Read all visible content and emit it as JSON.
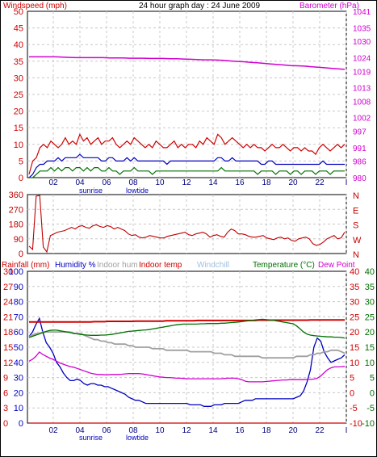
{
  "colors": {
    "wind": "#d00000",
    "gust": "#d00000",
    "avg_wind": "#0000c0",
    "wind_low": "#007000",
    "barometer": "#d000d0",
    "wind_dir": "#c00000",
    "rain": "#d00000",
    "humidity": "#0000c0",
    "indoor_hum": "#a0a0a0",
    "indoor_temp": "#d00000",
    "windchill": "#a0c0e0",
    "temperature": "#007000",
    "dew_point": "#d000d0"
  },
  "header": {
    "left_label": "Windspeed (mph)",
    "title": "24 hour graph day : 24 June 2009",
    "right_label": "Barometer (hPa)"
  },
  "legend": {
    "rainfall": "Rainfall (mm)",
    "humidity": "Humidity %",
    "indoor_hum": "Indoor hum",
    "indoor_temp": "Indoor temp",
    "windchill": "Windchill",
    "temperature": "Temperature (°C)",
    "dew_point": "Dew Point"
  },
  "chart_data": [
    {
      "type": "line",
      "panel": "wind",
      "x_ticks": [
        "02",
        "04",
        "06",
        "08",
        "10",
        "12",
        "14",
        "16",
        "18",
        "20",
        "22",
        "I"
      ],
      "annotations": [
        "sunrise",
        "lowtide"
      ],
      "left_axis": {
        "label": "Windspeed (mph)",
        "range": [
          0,
          50
        ],
        "ticks": [
          0,
          5,
          10,
          15,
          20,
          25,
          30,
          35,
          40,
          45,
          50
        ]
      },
      "right_axis": {
        "label": "Barometer (hPa)",
        "range": [
          980,
          1041
        ],
        "ticks": [
          980,
          986,
          991,
          997,
          1002,
          1008,
          1013,
          1019,
          1024,
          1030,
          1035,
          1041
        ]
      },
      "series": [
        {
          "name": "Gust",
          "axis": "left",
          "values": [
            1,
            5,
            6,
            9,
            10,
            9,
            11,
            10,
            9,
            10,
            12,
            10,
            11,
            10,
            13,
            11,
            12,
            10,
            11,
            12,
            10,
            11,
            11,
            12,
            10,
            9,
            10,
            11,
            10,
            12,
            11,
            10,
            9,
            10,
            9,
            11,
            10,
            9,
            9,
            10,
            11,
            9,
            10,
            9,
            10,
            10,
            9,
            11,
            10,
            12,
            11,
            10,
            13,
            12,
            10,
            11,
            12,
            11,
            10,
            9,
            10,
            9,
            10,
            9,
            9,
            8,
            9,
            10,
            9,
            9,
            10,
            9,
            8,
            9,
            9,
            8,
            9,
            8,
            8,
            7,
            9,
            10,
            9,
            8,
            9,
            10,
            9,
            10
          ]
        },
        {
          "name": "Average",
          "axis": "left",
          "values": [
            0,
            1,
            3,
            4,
            4,
            5,
            5,
            5,
            6,
            5,
            6,
            6,
            6,
            6,
            7,
            6,
            6,
            6,
            6,
            6,
            5,
            5,
            6,
            6,
            5,
            5,
            5,
            6,
            5,
            6,
            5,
            5,
            5,
            5,
            5,
            5,
            5,
            5,
            4,
            5,
            5,
            5,
            5,
            5,
            5,
            5,
            5,
            5,
            5,
            5,
            5,
            5,
            6,
            6,
            5,
            5,
            6,
            5,
            5,
            5,
            5,
            5,
            5,
            5,
            4,
            4,
            5,
            5,
            4,
            4,
            4,
            4,
            4,
            4,
            4,
            4,
            4,
            4,
            4,
            4,
            4,
            5,
            4,
            4,
            4,
            4,
            4,
            4
          ]
        },
        {
          "name": "Low",
          "axis": "left",
          "values": [
            0,
            0,
            1,
            2,
            2,
            2,
            3,
            2,
            3,
            2,
            3,
            3,
            2,
            3,
            3,
            2,
            3,
            2,
            3,
            3,
            2,
            2,
            3,
            2,
            2,
            1,
            2,
            2,
            2,
            3,
            2,
            2,
            2,
            2,
            1,
            2,
            2,
            2,
            2,
            2,
            2,
            2,
            2,
            2,
            2,
            2,
            2,
            2,
            2,
            2,
            2,
            2,
            2,
            3,
            2,
            2,
            2,
            2,
            2,
            2,
            2,
            2,
            2,
            1,
            2,
            2,
            2,
            2,
            1,
            2,
            2,
            2,
            1,
            2,
            2,
            1,
            2,
            2,
            2,
            1,
            2,
            2,
            2,
            1,
            2,
            2,
            2,
            2
          ]
        },
        {
          "name": "Barometer",
          "axis": "right",
          "values": [
            1024.3,
            1024.3,
            1024.3,
            1024.3,
            1024.3,
            1024.2,
            1024.1,
            1024.0,
            1024.0,
            1024.0,
            1024.0,
            1024.0,
            1023.9,
            1023.9,
            1023.9,
            1023.8,
            1023.8,
            1023.8,
            1023.7,
            1023.7,
            1023.7,
            1023.6,
            1023.6,
            1023.5,
            1023.4,
            1023.3,
            1023.2,
            1023.2,
            1023.1,
            1023.0,
            1022.8,
            1022.6,
            1022.5,
            1022.3,
            1022.1,
            1021.9,
            1021.7,
            1021.5,
            1021.3,
            1021.1,
            1021.0,
            1020.9,
            1020.7,
            1020.5,
            1020.3,
            1020.1,
            1019.9,
            1019.7
          ]
        }
      ]
    },
    {
      "type": "line",
      "panel": "wind_direction",
      "axis": {
        "range": [
          0,
          360
        ],
        "ticks": [
          0,
          90,
          180,
          270,
          360
        ]
      },
      "compass_labels": [
        "N",
        "W",
        "S",
        "E",
        "N"
      ],
      "series": [
        {
          "name": "Wind direction",
          "values": [
            45,
            25,
            350,
            355,
            40,
            10,
            110,
            120,
            130,
            135,
            140,
            150,
            160,
            150,
            165,
            170,
            160,
            155,
            170,
            175,
            165,
            160,
            170,
            165,
            150,
            160,
            150,
            140,
            120,
            110,
            115,
            100,
            95,
            100,
            110,
            105,
            100,
            95,
            95,
            105,
            110,
            115,
            120,
            125,
            130,
            115,
            110,
            120,
            125,
            130,
            120,
            100,
            110,
            115,
            105,
            100,
            130,
            150,
            140,
            120,
            120,
            115,
            105,
            100,
            100,
            105,
            110,
            95,
            90,
            85,
            95,
            100,
            90,
            95,
            80,
            75,
            90,
            95,
            100,
            90,
            60,
            50,
            55,
            70,
            90,
            100,
            110,
            90,
            95,
            130
          ]
        }
      ]
    },
    {
      "type": "line",
      "panel": "temperature_humidity",
      "axes": {
        "rainfall": {
          "range": [
            0,
            30
          ],
          "ticks": [
            0,
            3,
            6,
            9,
            12,
            15,
            18,
            21,
            24,
            27,
            30
          ]
        },
        "humidity": {
          "range": [
            0,
            100
          ],
          "ticks": [
            0,
            10,
            20,
            30,
            40,
            50,
            60,
            70,
            80,
            90,
            100
          ]
        },
        "indoor_temp": {
          "range": [
            -10,
            40
          ],
          "ticks": [
            -10,
            -5,
            0,
            5,
            10,
            15,
            20,
            25,
            30,
            35,
            40
          ]
        },
        "temperature": {
          "range": [
            -10,
            40
          ],
          "ticks": [
            -10,
            -5,
            0,
            5,
            10,
            15,
            20,
            25,
            30,
            35,
            40
          ]
        }
      },
      "series": [
        {
          "name": "Humidity %",
          "axis": "humidity",
          "values": [
            57,
            60,
            65,
            69,
            60,
            53,
            50,
            46,
            40,
            37,
            33,
            30,
            28,
            28,
            29,
            28,
            26,
            25,
            26,
            26,
            25,
            25,
            24,
            24,
            23,
            22,
            21,
            20,
            19,
            17,
            16,
            15,
            15,
            14,
            13,
            13,
            13,
            13,
            13,
            13,
            13,
            13,
            13,
            13,
            13,
            13,
            13,
            12,
            12,
            12,
            12,
            11,
            11,
            11,
            12,
            12,
            12,
            13,
            13,
            13,
            13,
            13,
            14,
            15,
            15,
            15,
            16,
            16,
            16,
            16,
            16,
            16,
            16,
            16,
            16,
            16,
            16,
            16,
            17,
            18,
            21,
            27,
            35,
            50,
            56,
            54,
            47,
            43,
            40,
            41,
            42,
            43,
            45
          ]
        },
        {
          "name": "Indoor hum",
          "axis": "humidity",
          "values": [
            57,
            58,
            59,
            59,
            60,
            60,
            60,
            60,
            60,
            60,
            60,
            60,
            60,
            59,
            59,
            59,
            58,
            57,
            56,
            55,
            55,
            54,
            54,
            53,
            53,
            52,
            52,
            52,
            52,
            51,
            51,
            50,
            50,
            50,
            50,
            50,
            49,
            49,
            49,
            49,
            48,
            48,
            48,
            48,
            48,
            48,
            48,
            47,
            47,
            47,
            47,
            47,
            47,
            47,
            46,
            46,
            46,
            45,
            45,
            45,
            44,
            44,
            44,
            44,
            44,
            44,
            44,
            44,
            43,
            43,
            43,
            43,
            43,
            43,
            43,
            43,
            43,
            43,
            44,
            44,
            44,
            44,
            45,
            45,
            46,
            46,
            47,
            47,
            48,
            48,
            48,
            47,
            46
          ]
        },
        {
          "name": "Indoor temp",
          "axis": "indoor_temp",
          "values": [
            23.3,
            23.3,
            23.3,
            23.3,
            23.3,
            23.3,
            23.3,
            23.3,
            23.3,
            23.3,
            23.3,
            23.3,
            23.3,
            23.3,
            23.3,
            23.3,
            23.3,
            23.3,
            23.3,
            23.4,
            23.4,
            23.4,
            23.4,
            23.5,
            23.5,
            23.5,
            23.5,
            23.5,
            23.5,
            23.5,
            23.5,
            23.6,
            23.6,
            23.6,
            23.6,
            23.6,
            23.6,
            23.6,
            23.6,
            23.6,
            23.7,
            23.7,
            23.7,
            23.7,
            23.7,
            23.7,
            23.7,
            23.7,
            23.7,
            23.8,
            23.8,
            23.8,
            23.8,
            23.8,
            23.8,
            23.8,
            23.8,
            23.8,
            23.8,
            23.8,
            23.8,
            23.8,
            23.8,
            23.8,
            23.8,
            23.8,
            23.8,
            23.9,
            23.9,
            23.9,
            23.9,
            23.9,
            23.9,
            23.9,
            23.9,
            23.9,
            23.9,
            23.9,
            23.9,
            23.9,
            23.9,
            23.9,
            24.0,
            24.0,
            24.0,
            24.0,
            24.0,
            24.0,
            24.0,
            24.0,
            24.0,
            24.0,
            24.0
          ]
        },
        {
          "name": "Temperature",
          "axis": "temperature",
          "values": [
            18.2,
            18.6,
            19.0,
            19.4,
            19.8,
            20.2,
            20.5,
            20.6,
            20.6,
            20.4,
            20.2,
            20.0,
            19.8,
            19.6,
            19.4,
            19.2,
            19.1,
            19.0,
            18.9,
            18.9,
            18.9,
            19.0,
            19.0,
            19.1,
            19.2,
            19.4,
            19.6,
            19.8,
            20.0,
            20.2,
            20.3,
            20.4,
            20.5,
            20.6,
            20.7,
            20.8,
            21.0,
            21.2,
            21.4,
            21.6,
            21.8,
            22.0,
            22.2,
            22.4,
            22.5,
            22.6,
            22.6,
            22.6,
            22.6,
            22.6,
            22.7,
            22.7,
            22.8,
            22.8,
            22.8,
            22.8,
            22.9,
            22.9,
            23.0,
            23.1,
            23.2,
            23.3,
            23.4,
            23.6,
            23.7,
            23.8,
            24.0,
            24.1,
            24.2,
            24.1,
            24.0,
            23.9,
            23.7,
            23.5,
            23.3,
            23.1,
            22.9,
            22.7,
            22.0,
            21.0,
            20.0,
            19.3,
            19.0,
            18.8,
            18.7,
            18.6,
            18.5,
            18.4,
            18.4,
            18.3,
            18.3,
            18.2,
            18.0
          ]
        },
        {
          "name": "Dew Point",
          "axis": "temperature",
          "values": [
            10.4,
            11.0,
            12.0,
            13.4,
            12.6,
            12.0,
            11.4,
            11.0,
            10.4,
            9.8,
            9.4,
            9.0,
            8.6,
            8.4,
            8.0,
            7.6,
            7.2,
            6.8,
            6.4,
            6.2,
            6.0,
            6.0,
            5.9,
            5.9,
            6.0,
            6.0,
            6.0,
            6.1,
            6.2,
            6.3,
            6.3,
            6.3,
            6.3,
            6.2,
            6.0,
            5.8,
            5.6,
            5.4,
            5.2,
            5.1,
            5.0,
            5.0,
            4.9,
            4.8,
            4.8,
            4.7,
            4.6,
            4.6,
            4.6,
            4.6,
            4.6,
            4.6,
            4.6,
            4.6,
            4.6,
            4.6,
            4.6,
            4.7,
            4.8,
            4.8,
            4.8,
            4.6,
            4.3,
            3.8,
            3.6,
            3.6,
            3.6,
            3.6,
            3.6,
            3.7,
            3.8,
            3.9,
            4.0,
            4.1,
            4.2,
            4.2,
            4.3,
            4.3,
            4.3,
            4.3,
            4.3,
            4.4,
            4.4,
            4.5,
            4.8,
            5.5,
            6.6,
            7.6,
            8.2,
            8.5,
            8.5,
            8.6,
            8.7
          ]
        },
        {
          "name": "Rainfall",
          "axis": "rainfall",
          "values": [
            0,
            0,
            0,
            0,
            0,
            0,
            0,
            0,
            0,
            0,
            0,
            0,
            0,
            0,
            0,
            0,
            0,
            0,
            0,
            0,
            0,
            0,
            0,
            0,
            0
          ]
        }
      ]
    }
  ]
}
